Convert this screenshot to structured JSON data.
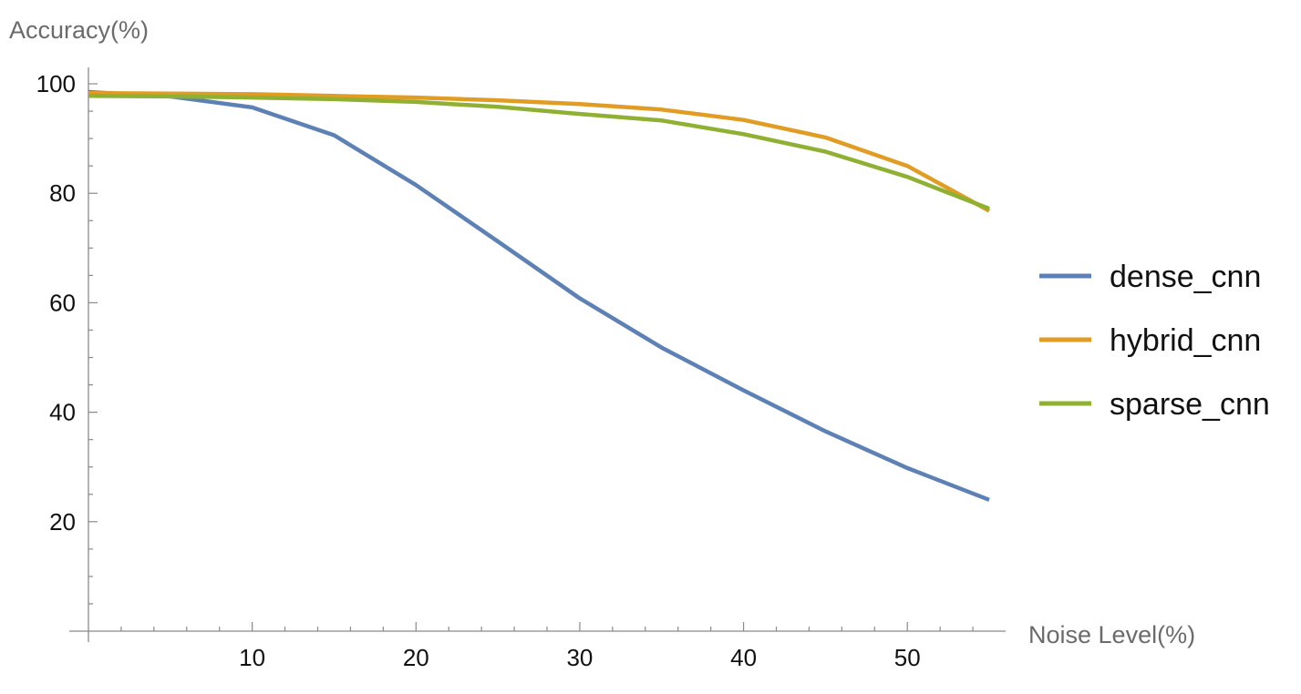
{
  "chart_data": {
    "type": "line",
    "title": "",
    "xlabel": "Noise Level(%)",
    "ylabel": "Accuracy(%)",
    "xlim": [
      0,
      56
    ],
    "ylim": [
      0,
      103
    ],
    "x_ticks": [
      10,
      20,
      30,
      40,
      50
    ],
    "y_ticks": [
      20,
      40,
      60,
      80,
      100
    ],
    "grid": false,
    "legend_position": "right",
    "x": [
      0,
      5,
      10,
      15,
      20,
      25,
      30,
      35,
      40,
      45,
      50,
      55
    ],
    "series": [
      {
        "name": "dense_cnn",
        "color": "#5e81b5",
        "values": [
          98.5,
          97.7,
          95.7,
          90.6,
          81.5,
          71.2,
          60.8,
          51.8,
          44.0,
          36.5,
          29.8,
          24.0
        ]
      },
      {
        "name": "hybrid_cnn",
        "color": "#e19c24",
        "values": [
          98.3,
          98.2,
          98.1,
          97.8,
          97.5,
          97.0,
          96.3,
          95.3,
          93.4,
          90.2,
          85.0,
          76.8
        ]
      },
      {
        "name": "sparse_cnn",
        "color": "#8fb032",
        "values": [
          97.8,
          97.7,
          97.5,
          97.2,
          96.7,
          95.8,
          94.5,
          93.3,
          90.8,
          87.6,
          83.0,
          77.2
        ]
      }
    ]
  }
}
